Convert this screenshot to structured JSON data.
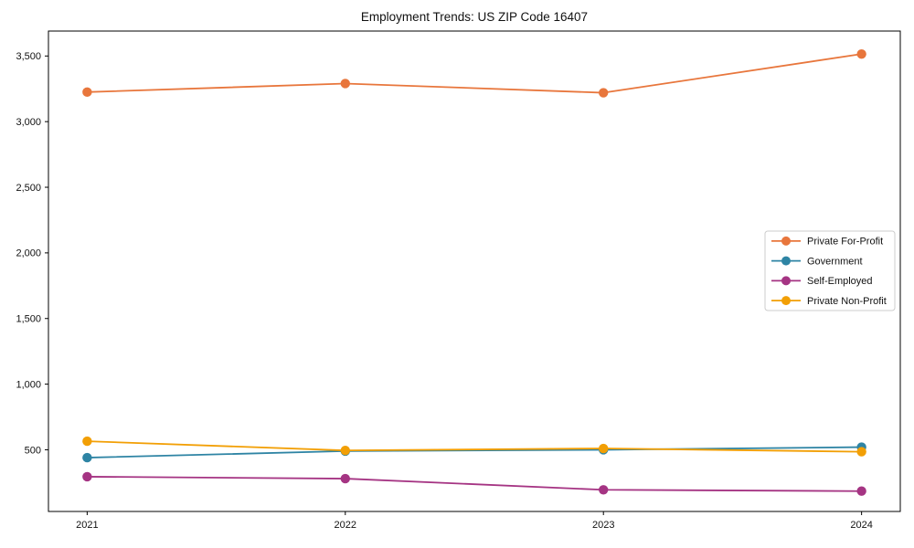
{
  "chart_data": {
    "type": "line",
    "title": "Employment Trends: US ZIP Code 16407",
    "xlabel": "",
    "ylabel": "",
    "x": [
      2021,
      2022,
      2023,
      2024
    ],
    "x_tick_labels": [
      "2021",
      "2022",
      "2023",
      "2024"
    ],
    "y_ticks": [
      500,
      1000,
      1500,
      2000,
      2500,
      3000,
      3500
    ],
    "y_tick_labels": [
      "500",
      "1,000",
      "1,500",
      "2,000",
      "2,500",
      "3,000",
      "3,500"
    ],
    "xlim": [
      2020.85,
      2024.15
    ],
    "ylim": [
      30,
      3690
    ],
    "grid": false,
    "legend_position": "center right",
    "series": [
      {
        "name": "Private For-Profit",
        "slug": "private-for-profit",
        "color": "#E8763C",
        "values": [
          3225,
          3290,
          3220,
          3515
        ]
      },
      {
        "name": "Government",
        "slug": "government",
        "color": "#2E84A4",
        "values": [
          440,
          490,
          500,
          520
        ]
      },
      {
        "name": "Self-Employed",
        "slug": "self-employed",
        "color": "#A53483",
        "values": [
          295,
          280,
          195,
          185
        ]
      },
      {
        "name": "Private Non-Profit",
        "slug": "private-non-profit",
        "color": "#F29F05",
        "values": [
          565,
          495,
          510,
          485
        ]
      }
    ]
  },
  "colors": {
    "background": "#ffffff",
    "spine": "#000000",
    "tick_text": "#111111",
    "legend_border": "#cccccc",
    "legend_fill": "#ffffff"
  }
}
